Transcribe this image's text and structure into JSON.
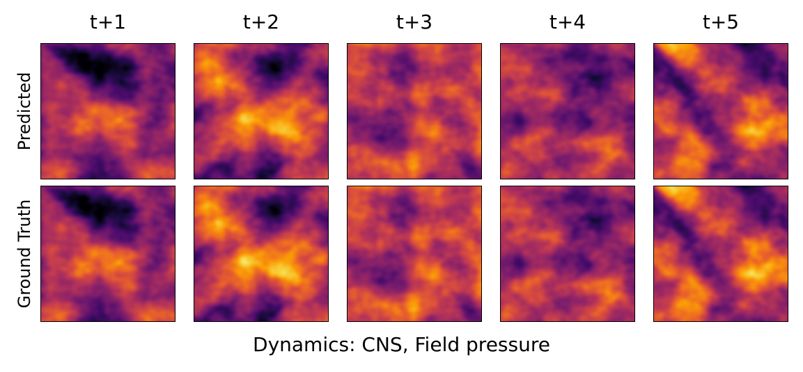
{
  "figure": {
    "columns": [
      "t+1",
      "t+2",
      "t+3",
      "t+4",
      "t+5"
    ],
    "rows": [
      "Predicted",
      "Ground Truth"
    ],
    "caption": "Dynamics: CNS, Field pressure",
    "colormap": "inferno",
    "colors": {
      "inferno_stops": [
        "#000004",
        "#1b0c41",
        "#4a0c6b",
        "#781c6d",
        "#a52c60",
        "#cf4446",
        "#ed6925",
        "#fb9b06",
        "#f7d13d",
        "#fcffa4"
      ]
    }
  },
  "chart_data": {
    "type": "heatmap",
    "title": "",
    "subtitle": "",
    "xlabel": "Dynamics: CNS, Field pressure",
    "ylabel": "",
    "grid": false,
    "legend": "none",
    "colormap": "inferno",
    "panels": [
      {
        "row": "Predicted",
        "column": "t+1"
      },
      {
        "row": "Predicted",
        "column": "t+2"
      },
      {
        "row": "Predicted",
        "column": "t+3"
      },
      {
        "row": "Predicted",
        "column": "t+4"
      },
      {
        "row": "Predicted",
        "column": "t+5"
      },
      {
        "row": "Ground Truth",
        "column": "t+1"
      },
      {
        "row": "Ground Truth",
        "column": "t+2"
      },
      {
        "row": "Ground Truth",
        "column": "t+3"
      },
      {
        "row": "Ground Truth",
        "column": "t+4"
      },
      {
        "row": "Ground Truth",
        "column": "t+5"
      }
    ]
  }
}
